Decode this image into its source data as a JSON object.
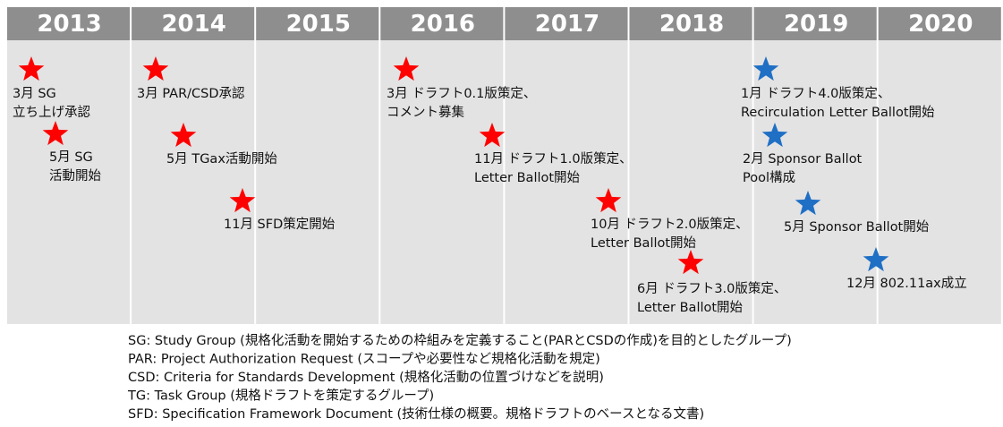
{
  "header": {
    "years": [
      "2013",
      "2014",
      "2015",
      "2016",
      "2017",
      "2018",
      "2019",
      "2020"
    ]
  },
  "events": [
    {
      "lines": [
        "3月 SG",
        "立ち上げ承認"
      ],
      "color": "#ff0000"
    },
    {
      "lines": [
        "5月 SG",
        "活動開始"
      ],
      "color": "#ff0000"
    },
    {
      "lines": [
        "3月 PAR/CSD承認"
      ],
      "color": "#ff0000"
    },
    {
      "lines": [
        "5月 TGax活動開始"
      ],
      "color": "#ff0000"
    },
    {
      "lines": [
        "11月 SFD策定開始"
      ],
      "color": "#ff0000"
    },
    {
      "lines": [
        "3月 ドラフト0.1版策定、",
        "コメント募集"
      ],
      "color": "#ff0000"
    },
    {
      "lines": [
        "11月 ドラフト1.0版策定、",
        "Letter Ballot開始"
      ],
      "color": "#ff0000"
    },
    {
      "lines": [
        "10月 ドラフト2.0版策定、",
        "Letter Ballot開始"
      ],
      "color": "#ff0000"
    },
    {
      "lines": [
        "6月 ドラフト3.0版策定、",
        "Letter Ballot開始"
      ],
      "color": "#ff0000"
    },
    {
      "lines": [
        "1月 ドラフト4.0版策定、",
        "Recirculation Letter Ballot開始"
      ],
      "color": "#1f6fc5"
    },
    {
      "lines": [
        "2月 Sponsor Ballot",
        "Pool構成"
      ],
      "color": "#1f6fc5"
    },
    {
      "lines": [
        "5月 Sponsor Ballot開始"
      ],
      "color": "#1f6fc5"
    },
    {
      "lines": [
        "12月 802.11ax成立"
      ],
      "color": "#1f6fc5"
    }
  ],
  "notes": [
    "SG: Study Group (規格化活動を開始するための枠組みを定義すること(PARとCSDの作成)を目的としたグループ)",
    "PAR: Project Authorization Request (スコープや必要性など規格化活動を規定)",
    "CSD: Criteria for Standards Development (規格化活動の位置づけなどを説明)",
    "TG: Task Group (規格ドラフトを策定するグループ)",
    "SFD: Specification Framework Document (技術仕様の概要。規格ドラフトのベースとなる文書)"
  ]
}
